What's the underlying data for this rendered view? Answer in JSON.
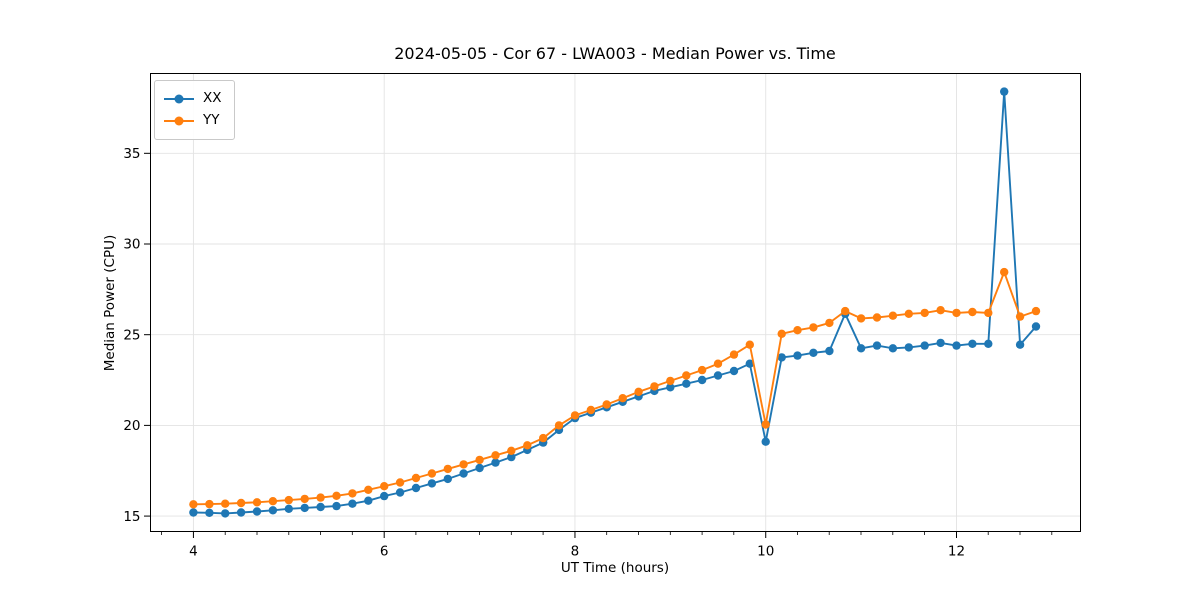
{
  "chart_data": {
    "type": "line",
    "title": "2024-05-05 - Cor 67 - LWA003 - Median Power vs. Time",
    "xlabel": "UT Time (hours)",
    "ylabel": "Median Power (CPU)",
    "xlim": [
      3.55,
      13.3
    ],
    "ylim": [
      14.15,
      39.4
    ],
    "xticks": [
      4,
      6,
      8,
      10,
      12
    ],
    "yticks": [
      15,
      20,
      25,
      30,
      35
    ],
    "x_minor_step": 0.3333,
    "grid": true,
    "legend_position": "upper-left",
    "colors": {
      "grid": "#e3e3e3",
      "spine": "#000000",
      "series_xx": "#1f77b4",
      "series_yy": "#ff7f0e"
    },
    "x": [
      4.0,
      4.167,
      4.333,
      4.5,
      4.667,
      4.833,
      5.0,
      5.167,
      5.333,
      5.5,
      5.667,
      5.833,
      6.0,
      6.167,
      6.333,
      6.5,
      6.667,
      6.833,
      7.0,
      7.167,
      7.333,
      7.5,
      7.667,
      7.833,
      8.0,
      8.167,
      8.333,
      8.5,
      8.667,
      8.833,
      9.0,
      9.167,
      9.333,
      9.5,
      9.667,
      9.833,
      10.0,
      10.167,
      10.333,
      10.5,
      10.667,
      10.833,
      11.0,
      11.167,
      11.333,
      11.5,
      11.667,
      11.833,
      12.0,
      12.167,
      12.333,
      12.5,
      12.667,
      12.833
    ],
    "series": [
      {
        "name": "XX",
        "color": "#1f77b4",
        "values": [
          15.2,
          15.18,
          15.15,
          15.2,
          15.25,
          15.32,
          15.4,
          15.45,
          15.5,
          15.55,
          15.68,
          15.85,
          16.1,
          16.3,
          16.55,
          16.8,
          17.05,
          17.35,
          17.65,
          17.95,
          18.25,
          18.65,
          19.05,
          19.75,
          20.4,
          20.7,
          21.0,
          21.3,
          21.6,
          21.9,
          22.1,
          22.3,
          22.5,
          22.75,
          23.0,
          23.4,
          19.1,
          23.75,
          23.85,
          24.0,
          24.1,
          26.15,
          24.25,
          24.4,
          24.25,
          24.3,
          24.4,
          24.55,
          24.4,
          24.5,
          24.5,
          38.4,
          24.45,
          25.45
        ]
      },
      {
        "name": "YY",
        "color": "#ff7f0e",
        "values": [
          15.65,
          15.66,
          15.68,
          15.72,
          15.76,
          15.82,
          15.88,
          15.95,
          16.02,
          16.12,
          16.25,
          16.45,
          16.65,
          16.85,
          17.1,
          17.35,
          17.6,
          17.85,
          18.1,
          18.35,
          18.6,
          18.9,
          19.3,
          20.0,
          20.55,
          20.85,
          21.15,
          21.5,
          21.85,
          22.15,
          22.45,
          22.75,
          23.05,
          23.4,
          23.9,
          24.45,
          20.05,
          25.05,
          25.25,
          25.4,
          25.65,
          26.3,
          25.9,
          25.95,
          26.05,
          26.15,
          26.2,
          26.35,
          26.2,
          26.25,
          26.2,
          28.45,
          26.0,
          26.3
        ]
      }
    ]
  }
}
